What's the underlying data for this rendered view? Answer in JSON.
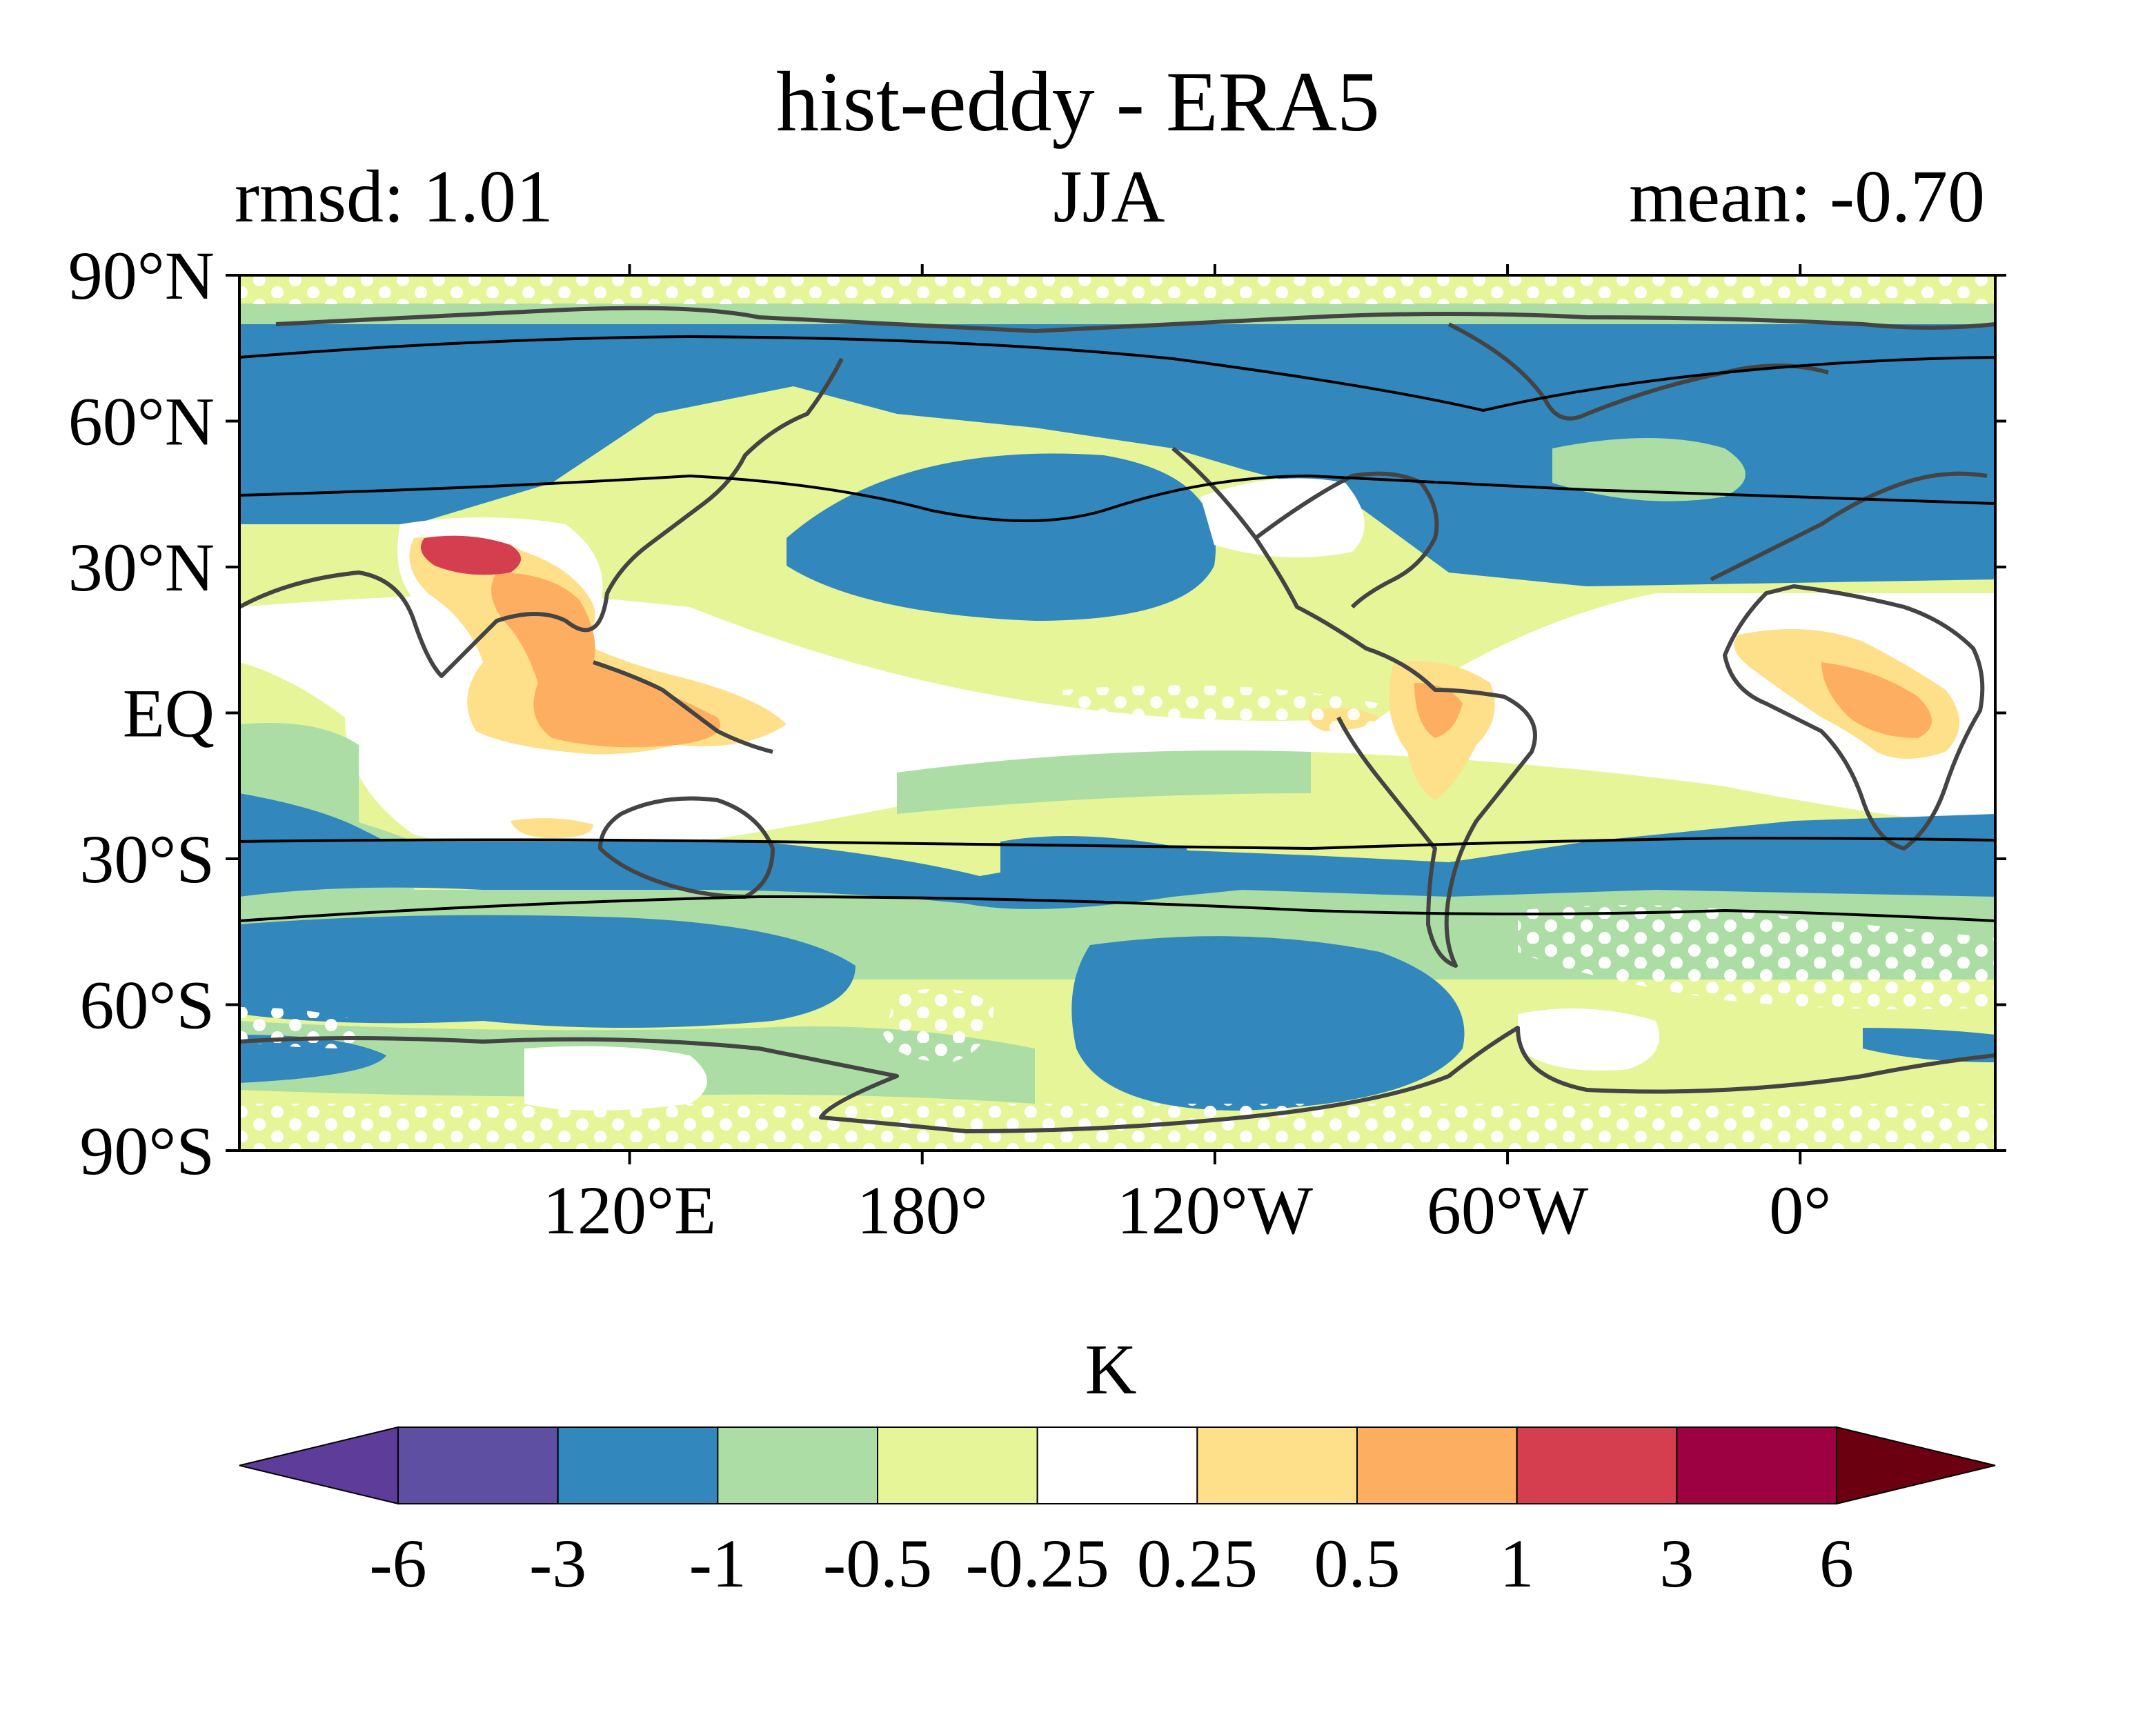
{
  "title": "hist-eddy - ERA5",
  "subtitle_left": "rmsd: 1.01",
  "subtitle_center": "JJA",
  "subtitle_right": "mean: -0.70",
  "map": {
    "lat_labels": [
      "90°N",
      "60°N",
      "30°N",
      "EQ",
      "30°S",
      "60°S",
      "90°S"
    ],
    "lat_values": [
      90,
      60,
      30,
      0,
      -30,
      -60,
      -90
    ],
    "lon_labels": [
      "120°E",
      "180°",
      "120°W",
      "60°W",
      "0°"
    ],
    "lon_values": [
      120,
      180,
      240,
      300,
      360
    ],
    "lon_range": [
      40,
      400
    ],
    "lat_range": [
      -90,
      90
    ]
  },
  "colorbar": {
    "unit": "K",
    "boundaries": [
      "-6",
      "-3",
      "-1",
      "-0.5",
      "-0.25",
      "0.25",
      "0.5",
      "1",
      "3",
      "6"
    ],
    "colors": [
      "#5e3c99",
      "#5e4fa2",
      "#3288bd",
      "#abdda4",
      "#e6f598",
      "#ffffff",
      "#fee08b",
      "#fdae61",
      "#d53e4f",
      "#9e0142",
      "#6b0010"
    ]
  }
}
